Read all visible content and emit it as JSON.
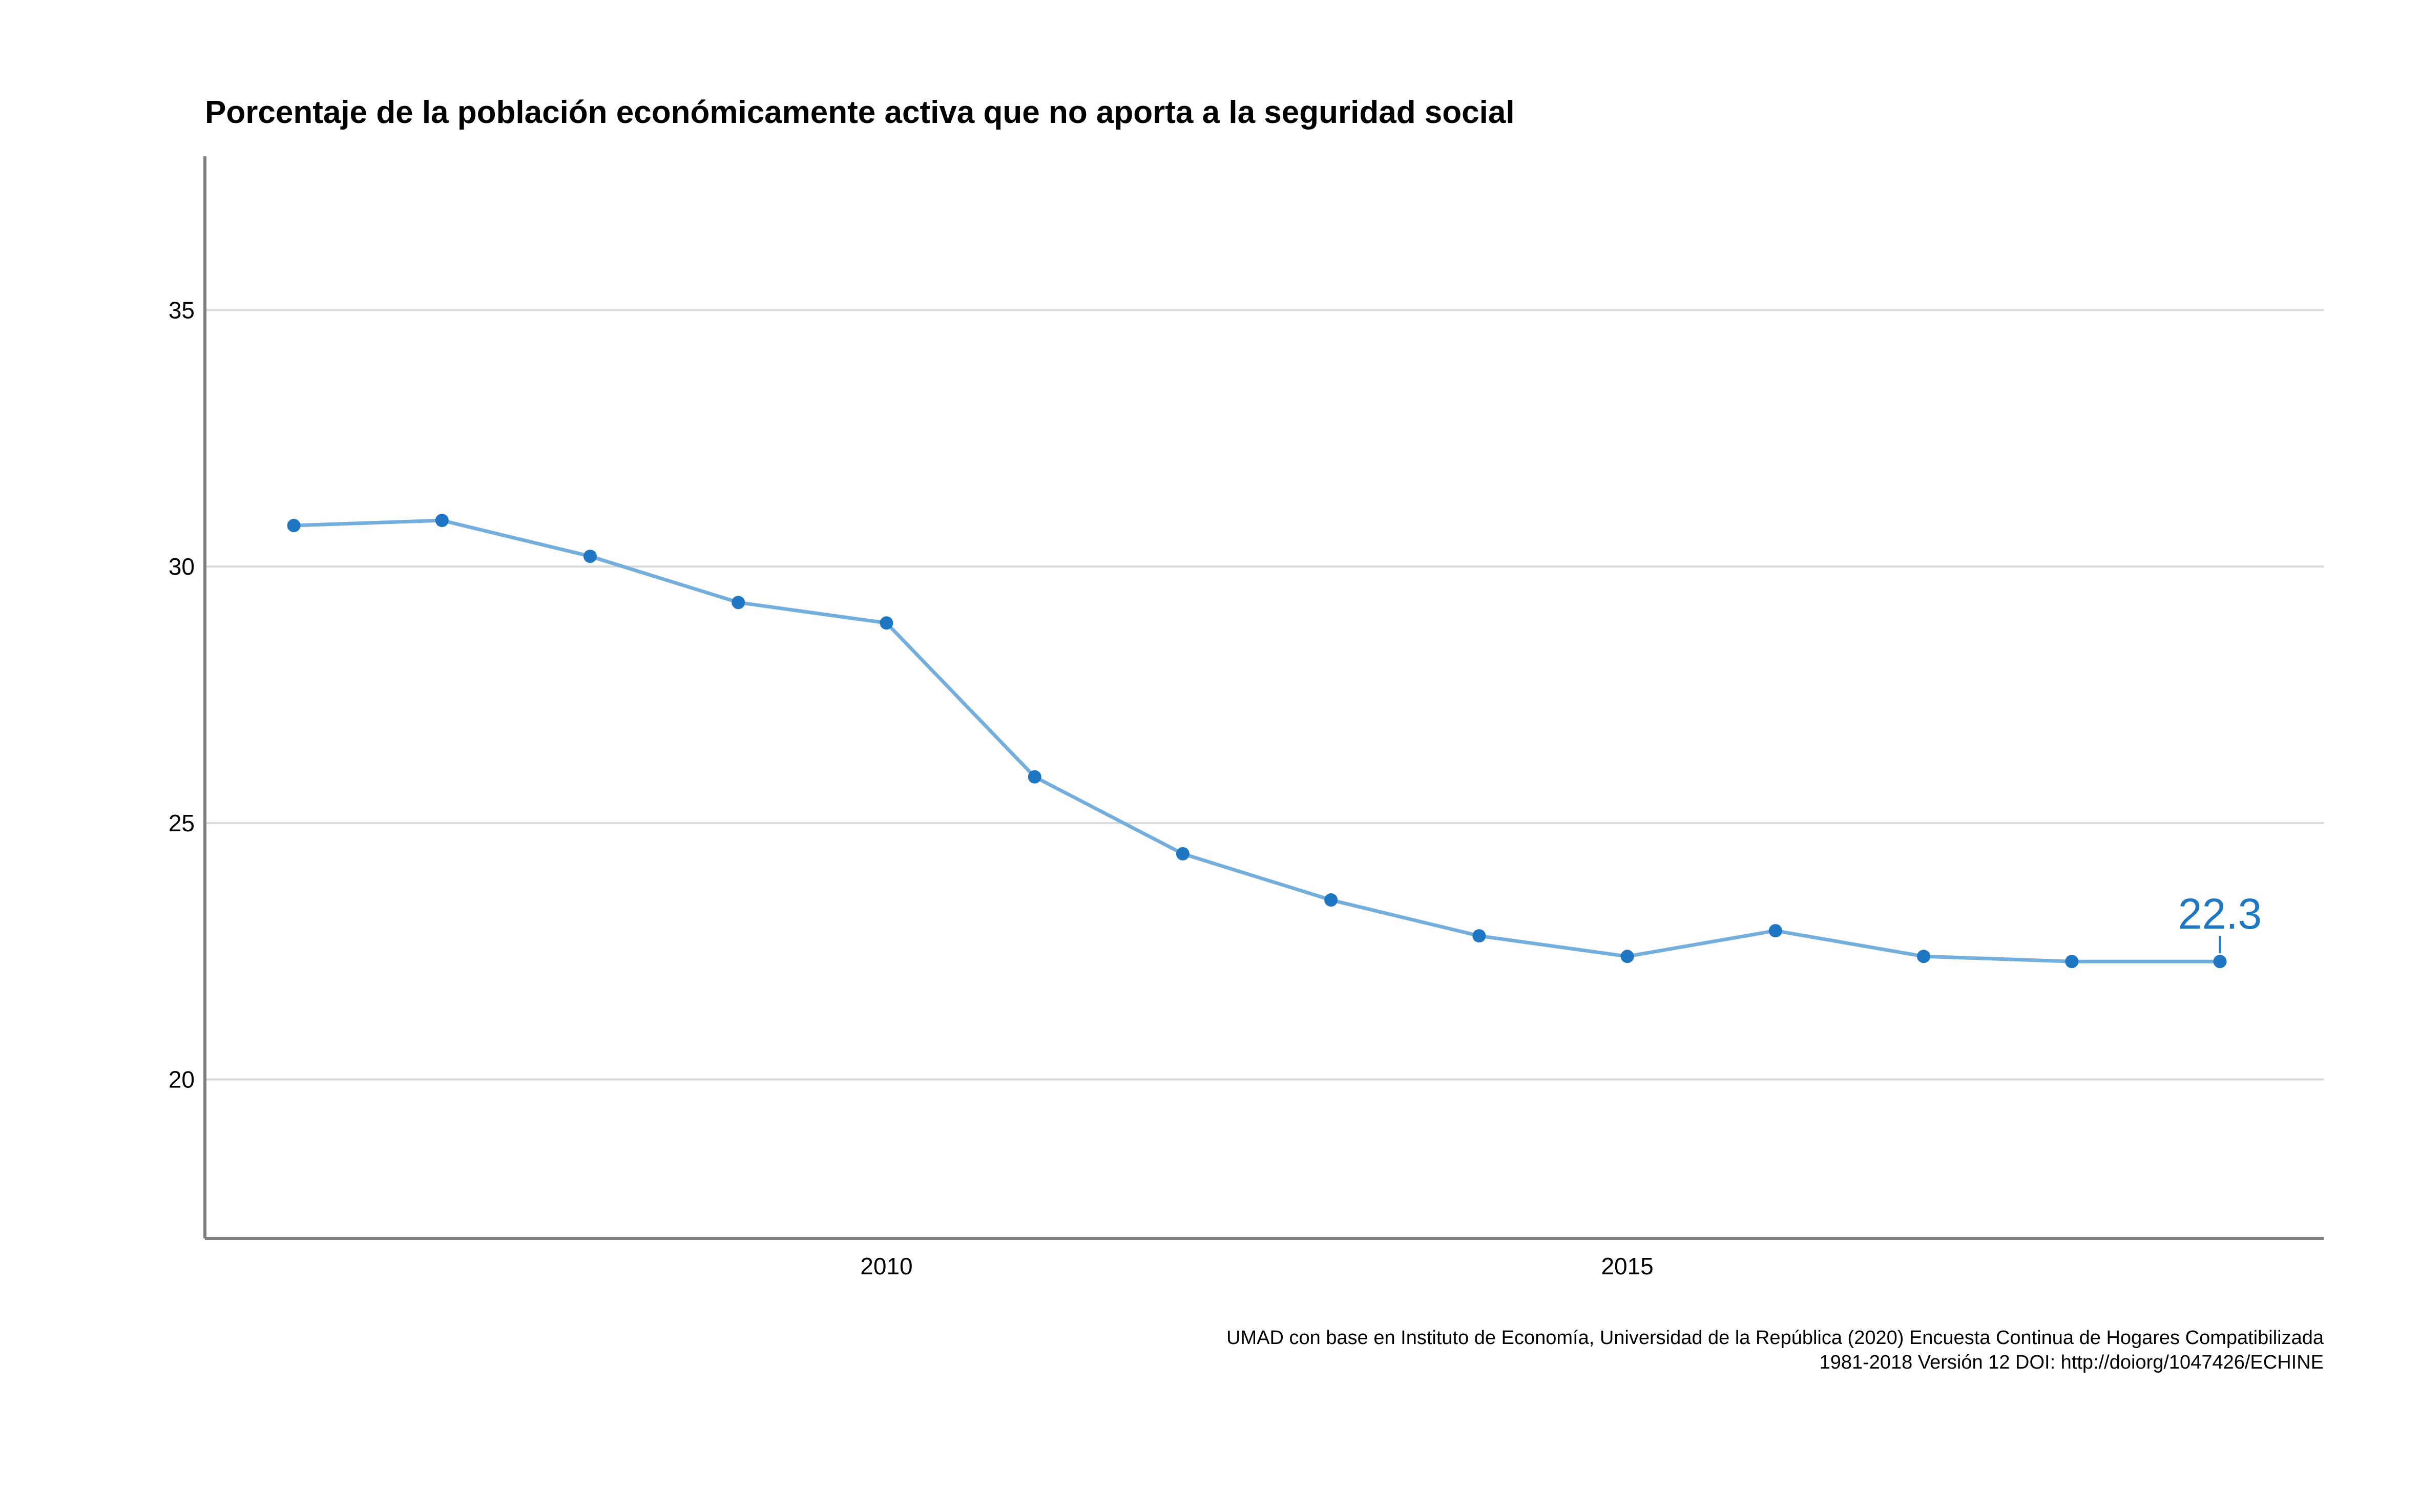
{
  "chart_data": {
    "type": "line",
    "title": "Porcentaje de la población económicamente activa que no aporta a la seguridad social",
    "xlabel": "",
    "ylabel": "",
    "x": [
      2006,
      2007,
      2008,
      2009,
      2010,
      2011,
      2012,
      2013,
      2014,
      2015,
      2016,
      2017,
      2018,
      2019
    ],
    "series": [
      {
        "values": [
          30.8,
          30.9,
          30.2,
          29.3,
          28.9,
          25.9,
          24.4,
          23.5,
          22.8,
          22.4,
          22.9,
          22.4,
          22.3,
          22.3
        ]
      }
    ],
    "xlim": [
      2005.4,
      2019.7
    ],
    "ylim": [
      16.9,
      38.0
    ],
    "xticks": [
      2010,
      2015
    ],
    "xtick_labels": [
      "2010",
      "2015"
    ],
    "yticks": [
      20,
      25,
      30,
      35
    ],
    "ytick_labels": [
      "20",
      "25",
      "30",
      "35"
    ],
    "grid": "horizontal",
    "end_label": "22.3",
    "colors": {
      "line": "#74aedc",
      "point": "#1f77c4",
      "label": "#1f77c4",
      "grid": "#d9d9d9",
      "axis": "#7f7f7f"
    },
    "caption_lines": [
      "UMAD con base en Instituto de Economía, Universidad de la República (2020) Encuesta Continua de Hogares Compatibilizada",
      "1981-2018 Versión 12 DOI: http://doiorg/1047426/ECHINE"
    ]
  }
}
